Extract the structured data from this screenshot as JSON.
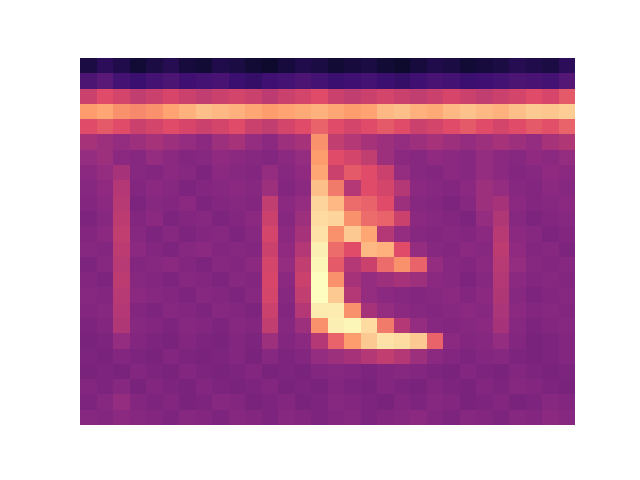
{
  "chart_data": {
    "type": "heatmap",
    "tick_labels": false,
    "z": [
      [
        0.12,
        0.15,
        0.13,
        0.1,
        0.12,
        0.14,
        0.11,
        0.1,
        0.13,
        0.12,
        0.1,
        0.09,
        0.11,
        0.13,
        0.12,
        0.1,
        0.11,
        0.12,
        0.1,
        0.09,
        0.11,
        0.13,
        0.12,
        0.1,
        0.11,
        0.12,
        0.14,
        0.13,
        0.12,
        0.15
      ],
      [
        0.22,
        0.25,
        0.2,
        0.18,
        0.2,
        0.22,
        0.19,
        0.2,
        0.21,
        0.18,
        0.17,
        0.19,
        0.2,
        0.22,
        0.2,
        0.18,
        0.19,
        0.2,
        0.18,
        0.17,
        0.19,
        0.21,
        0.2,
        0.18,
        0.19,
        0.2,
        0.22,
        0.21,
        0.2,
        0.24
      ],
      [
        0.5,
        0.55,
        0.52,
        0.48,
        0.5,
        0.53,
        0.5,
        0.48,
        0.5,
        0.52,
        0.5,
        0.47,
        0.5,
        0.52,
        0.55,
        0.5,
        0.48,
        0.5,
        0.52,
        0.5,
        0.48,
        0.5,
        0.53,
        0.5,
        0.48,
        0.5,
        0.52,
        0.55,
        0.53,
        0.58
      ],
      [
        0.72,
        0.75,
        0.7,
        0.68,
        0.7,
        0.74,
        0.78,
        0.82,
        0.8,
        0.78,
        0.75,
        0.72,
        0.74,
        0.76,
        0.78,
        0.75,
        0.72,
        0.74,
        0.8,
        0.82,
        0.78,
        0.76,
        0.8,
        0.83,
        0.8,
        0.78,
        0.82,
        0.85,
        0.84,
        0.86
      ],
      [
        0.55,
        0.58,
        0.55,
        0.5,
        0.52,
        0.55,
        0.53,
        0.5,
        0.52,
        0.55,
        0.5,
        0.48,
        0.52,
        0.55,
        0.6,
        0.55,
        0.52,
        0.55,
        0.58,
        0.55,
        0.5,
        0.52,
        0.55,
        0.58,
        0.55,
        0.52,
        0.55,
        0.58,
        0.56,
        0.6
      ],
      [
        0.42,
        0.4,
        0.38,
        0.4,
        0.42,
        0.4,
        0.38,
        0.36,
        0.4,
        0.42,
        0.38,
        0.36,
        0.4,
        0.42,
        0.7,
        0.48,
        0.45,
        0.42,
        0.4,
        0.38,
        0.4,
        0.42,
        0.4,
        0.38,
        0.4,
        0.42,
        0.4,
        0.38,
        0.42,
        0.44
      ],
      [
        0.38,
        0.4,
        0.36,
        0.35,
        0.38,
        0.36,
        0.34,
        0.35,
        0.37,
        0.36,
        0.35,
        0.34,
        0.36,
        0.38,
        0.72,
        0.55,
        0.52,
        0.48,
        0.4,
        0.36,
        0.35,
        0.37,
        0.36,
        0.35,
        0.38,
        0.36,
        0.35,
        0.37,
        0.36,
        0.38
      ],
      [
        0.36,
        0.38,
        0.42,
        0.35,
        0.34,
        0.36,
        0.35,
        0.33,
        0.36,
        0.35,
        0.34,
        0.38,
        0.35,
        0.37,
        0.75,
        0.5,
        0.58,
        0.55,
        0.5,
        0.38,
        0.35,
        0.34,
        0.36,
        0.35,
        0.38,
        0.36,
        0.34,
        0.35,
        0.37,
        0.36
      ],
      [
        0.35,
        0.37,
        0.45,
        0.34,
        0.36,
        0.35,
        0.33,
        0.34,
        0.35,
        0.36,
        0.35,
        0.4,
        0.34,
        0.36,
        0.82,
        0.65,
        0.45,
        0.55,
        0.52,
        0.45,
        0.36,
        0.35,
        0.34,
        0.36,
        0.4,
        0.38,
        0.35,
        0.34,
        0.36,
        0.35
      ],
      [
        0.34,
        0.36,
        0.46,
        0.33,
        0.35,
        0.34,
        0.36,
        0.33,
        0.34,
        0.35,
        0.34,
        0.48,
        0.36,
        0.38,
        0.88,
        0.8,
        0.62,
        0.6,
        0.55,
        0.4,
        0.35,
        0.34,
        0.33,
        0.35,
        0.4,
        0.42,
        0.36,
        0.34,
        0.35,
        0.36
      ],
      [
        0.33,
        0.35,
        0.47,
        0.34,
        0.36,
        0.33,
        0.34,
        0.35,
        0.33,
        0.34,
        0.36,
        0.5,
        0.35,
        0.4,
        0.9,
        0.88,
        0.7,
        0.62,
        0.6,
        0.5,
        0.36,
        0.35,
        0.34,
        0.33,
        0.38,
        0.44,
        0.35,
        0.33,
        0.34,
        0.35
      ],
      [
        0.34,
        0.36,
        0.48,
        0.35,
        0.33,
        0.35,
        0.33,
        0.34,
        0.35,
        0.33,
        0.35,
        0.52,
        0.36,
        0.42,
        0.92,
        0.7,
        0.85,
        0.75,
        0.45,
        0.38,
        0.35,
        0.34,
        0.35,
        0.34,
        0.36,
        0.46,
        0.36,
        0.35,
        0.33,
        0.34
      ],
      [
        0.35,
        0.34,
        0.47,
        0.36,
        0.34,
        0.33,
        0.35,
        0.36,
        0.34,
        0.35,
        0.34,
        0.5,
        0.37,
        0.45,
        0.96,
        0.62,
        0.55,
        0.8,
        0.78,
        0.55,
        0.38,
        0.35,
        0.34,
        0.36,
        0.35,
        0.47,
        0.37,
        0.34,
        0.35,
        0.33
      ],
      [
        0.33,
        0.35,
        0.46,
        0.34,
        0.35,
        0.36,
        0.34,
        0.33,
        0.35,
        0.34,
        0.36,
        0.52,
        0.38,
        0.48,
        0.98,
        0.58,
        0.45,
        0.5,
        0.62,
        0.7,
        0.6,
        0.38,
        0.35,
        0.34,
        0.36,
        0.46,
        0.38,
        0.35,
        0.34,
        0.35
      ],
      [
        0.34,
        0.33,
        0.47,
        0.35,
        0.34,
        0.33,
        0.35,
        0.34,
        0.33,
        0.35,
        0.34,
        0.53,
        0.36,
        0.5,
        1.0,
        0.7,
        0.42,
        0.38,
        0.4,
        0.42,
        0.4,
        0.36,
        0.35,
        0.33,
        0.35,
        0.45,
        0.36,
        0.34,
        0.35,
        0.34
      ],
      [
        0.35,
        0.34,
        0.46,
        0.36,
        0.35,
        0.34,
        0.33,
        0.35,
        0.34,
        0.33,
        0.35,
        0.52,
        0.35,
        0.48,
        1.0,
        0.85,
        0.45,
        0.38,
        0.36,
        0.35,
        0.34,
        0.35,
        0.36,
        0.34,
        0.36,
        0.44,
        0.35,
        0.33,
        0.34,
        0.35
      ],
      [
        0.34,
        0.35,
        0.45,
        0.34,
        0.33,
        0.35,
        0.34,
        0.33,
        0.35,
        0.34,
        0.33,
        0.5,
        0.34,
        0.45,
        0.95,
        0.95,
        0.7,
        0.42,
        0.38,
        0.36,
        0.35,
        0.34,
        0.35,
        0.36,
        0.35,
        0.43,
        0.36,
        0.34,
        0.35,
        0.34
      ],
      [
        0.33,
        0.34,
        0.44,
        0.35,
        0.34,
        0.33,
        0.35,
        0.34,
        0.33,
        0.35,
        0.34,
        0.48,
        0.35,
        0.4,
        0.7,
        0.96,
        0.98,
        0.9,
        0.65,
        0.45,
        0.38,
        0.35,
        0.34,
        0.35,
        0.36,
        0.42,
        0.35,
        0.33,
        0.34,
        0.35
      ],
      [
        0.32,
        0.33,
        0.38,
        0.34,
        0.33,
        0.32,
        0.34,
        0.33,
        0.32,
        0.34,
        0.33,
        0.4,
        0.34,
        0.36,
        0.45,
        0.6,
        0.72,
        0.85,
        0.92,
        0.9,
        0.85,
        0.6,
        0.36,
        0.34,
        0.35,
        0.38,
        0.34,
        0.32,
        0.33,
        0.34
      ],
      [
        0.33,
        0.32,
        0.34,
        0.33,
        0.32,
        0.34,
        0.33,
        0.32,
        0.33,
        0.34,
        0.32,
        0.35,
        0.33,
        0.34,
        0.38,
        0.4,
        0.42,
        0.45,
        0.48,
        0.45,
        0.4,
        0.36,
        0.34,
        0.33,
        0.34,
        0.35,
        0.33,
        0.32,
        0.33,
        0.34
      ],
      [
        0.32,
        0.33,
        0.32,
        0.34,
        0.33,
        0.32,
        0.34,
        0.33,
        0.32,
        0.33,
        0.34,
        0.32,
        0.33,
        0.32,
        0.34,
        0.35,
        0.34,
        0.33,
        0.34,
        0.35,
        0.34,
        0.33,
        0.32,
        0.34,
        0.33,
        0.32,
        0.34,
        0.33,
        0.32,
        0.33
      ],
      [
        0.34,
        0.33,
        0.35,
        0.32,
        0.34,
        0.33,
        0.32,
        0.34,
        0.33,
        0.32,
        0.33,
        0.34,
        0.32,
        0.33,
        0.32,
        0.34,
        0.33,
        0.32,
        0.34,
        0.33,
        0.32,
        0.34,
        0.33,
        0.32,
        0.34,
        0.33,
        0.35,
        0.34,
        0.33,
        0.32
      ],
      [
        0.33,
        0.35,
        0.38,
        0.34,
        0.33,
        0.34,
        0.32,
        0.33,
        0.35,
        0.34,
        0.32,
        0.33,
        0.34,
        0.32,
        0.33,
        0.35,
        0.34,
        0.33,
        0.32,
        0.34,
        0.33,
        0.35,
        0.34,
        0.32,
        0.33,
        0.34,
        0.32,
        0.33,
        0.35,
        0.34
      ],
      [
        0.35,
        0.34,
        0.36,
        0.35,
        0.34,
        0.33,
        0.35,
        0.34,
        0.33,
        0.35,
        0.34,
        0.33,
        0.35,
        0.34,
        0.33,
        0.34,
        0.35,
        0.33,
        0.34,
        0.35,
        0.36,
        0.34,
        0.33,
        0.35,
        0.34,
        0.33,
        0.35,
        0.34,
        0.36,
        0.35
      ]
    ]
  }
}
